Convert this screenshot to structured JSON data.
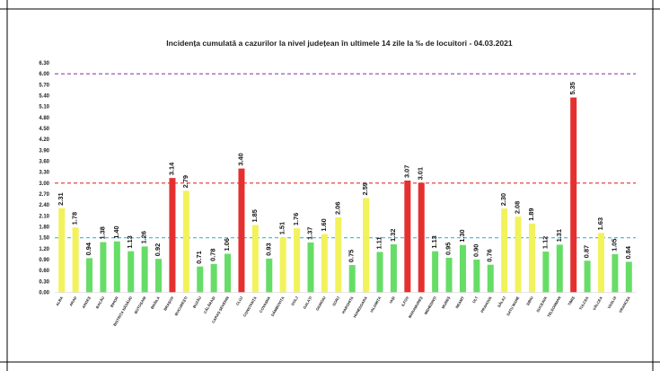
{
  "chart_data": {
    "type": "bar",
    "title": "Incidența cumulată a cazurilor la nivel județean în ultimele 14 zile la ‰ de locuitori - 04.03.2021",
    "xlabel": "",
    "ylabel": "",
    "ylim": [
      0,
      6.3
    ],
    "yticks": [
      "0.00",
      "0.30",
      "0.60",
      "0.90",
      "1.20",
      "1.50",
      "1.80",
      "2.10",
      "2.40",
      "2.70",
      "3.00",
      "3.30",
      "3.60",
      "3.90",
      "4.20",
      "4.50",
      "4.80",
      "5.10",
      "5.40",
      "5.70",
      "6.00",
      "6.30"
    ],
    "grid": false,
    "categories": [
      "ALBA",
      "ARAD",
      "ARGEȘ",
      "BACĂU",
      "BIHOR",
      "BISTRIȚA NĂSĂUD",
      "BOTOȘANI",
      "BRĂILA",
      "BRAȘOV",
      "BUCUREȘTI",
      "BUZĂU",
      "CĂLĂRAȘI",
      "CARAȘ SEVERIN",
      "CLUJ",
      "CONSTANȚA",
      "COVASNA",
      "DÂMBOVIȚA",
      "DOLJ",
      "GALAȚI",
      "GIURGIU",
      "GORJ",
      "HARGHITA",
      "HUNEDOARA",
      "IALOMIȚA",
      "IAȘI",
      "ILFOV",
      "MARAMUREȘ",
      "MEHEDINȚI",
      "MUREȘ",
      "NEAMȚ",
      "OLT",
      "PRAHOVA",
      "SĂLAJ",
      "SATU MARE",
      "SIBIU",
      "SUCEAVA",
      "TELEORMAN",
      "TIMIȘ",
      "TULCEA",
      "VÂLCEA",
      "VASLUI",
      "VRANCEA"
    ],
    "values": [
      2.31,
      1.78,
      0.94,
      1.38,
      1.4,
      1.13,
      1.26,
      0.92,
      3.14,
      2.79,
      0.71,
      0.78,
      1.06,
      3.4,
      1.85,
      0.93,
      1.51,
      1.76,
      1.37,
      1.6,
      2.06,
      0.75,
      2.59,
      1.11,
      1.32,
      3.07,
      3.01,
      1.13,
      0.95,
      1.3,
      0.9,
      0.76,
      2.3,
      2.08,
      1.89,
      1.12,
      1.31,
      5.35,
      0.87,
      1.63,
      1.05,
      0.84
    ],
    "value_labels": [
      "2.31",
      "1.78",
      "0.94",
      "1.38",
      "1.40",
      "1.13",
      "1.26",
      "0.92",
      "3.14",
      "2.79",
      "0.71",
      "0.78",
      "1.06",
      "3.40",
      "1.85",
      "0.93",
      "1.51",
      "1.76",
      "1.37",
      "1.60",
      "2.06",
      "0.75",
      "2.59",
      "1.11",
      "1.32",
      "3.07",
      "3.01",
      "1.13",
      "0.95",
      "1.30",
      "0.90",
      "0.76",
      "2.30",
      "2.08",
      "1.89",
      "1.12",
      "1.31",
      "5.35",
      "0.87",
      "1.63",
      "1.05",
      "0.84"
    ],
    "reference_lines": [
      {
        "name": "threshold-1.5",
        "value": 1.5,
        "color": "#3fb6d6"
      },
      {
        "name": "threshold-3",
        "value": 3.0,
        "color": "#e03030"
      },
      {
        "name": "threshold-6",
        "value": 6.0,
        "color": "#8e44ad"
      }
    ],
    "colors": {
      "green": "#66dd66",
      "yellow": "#f2f25c",
      "red": "#e53030"
    }
  }
}
